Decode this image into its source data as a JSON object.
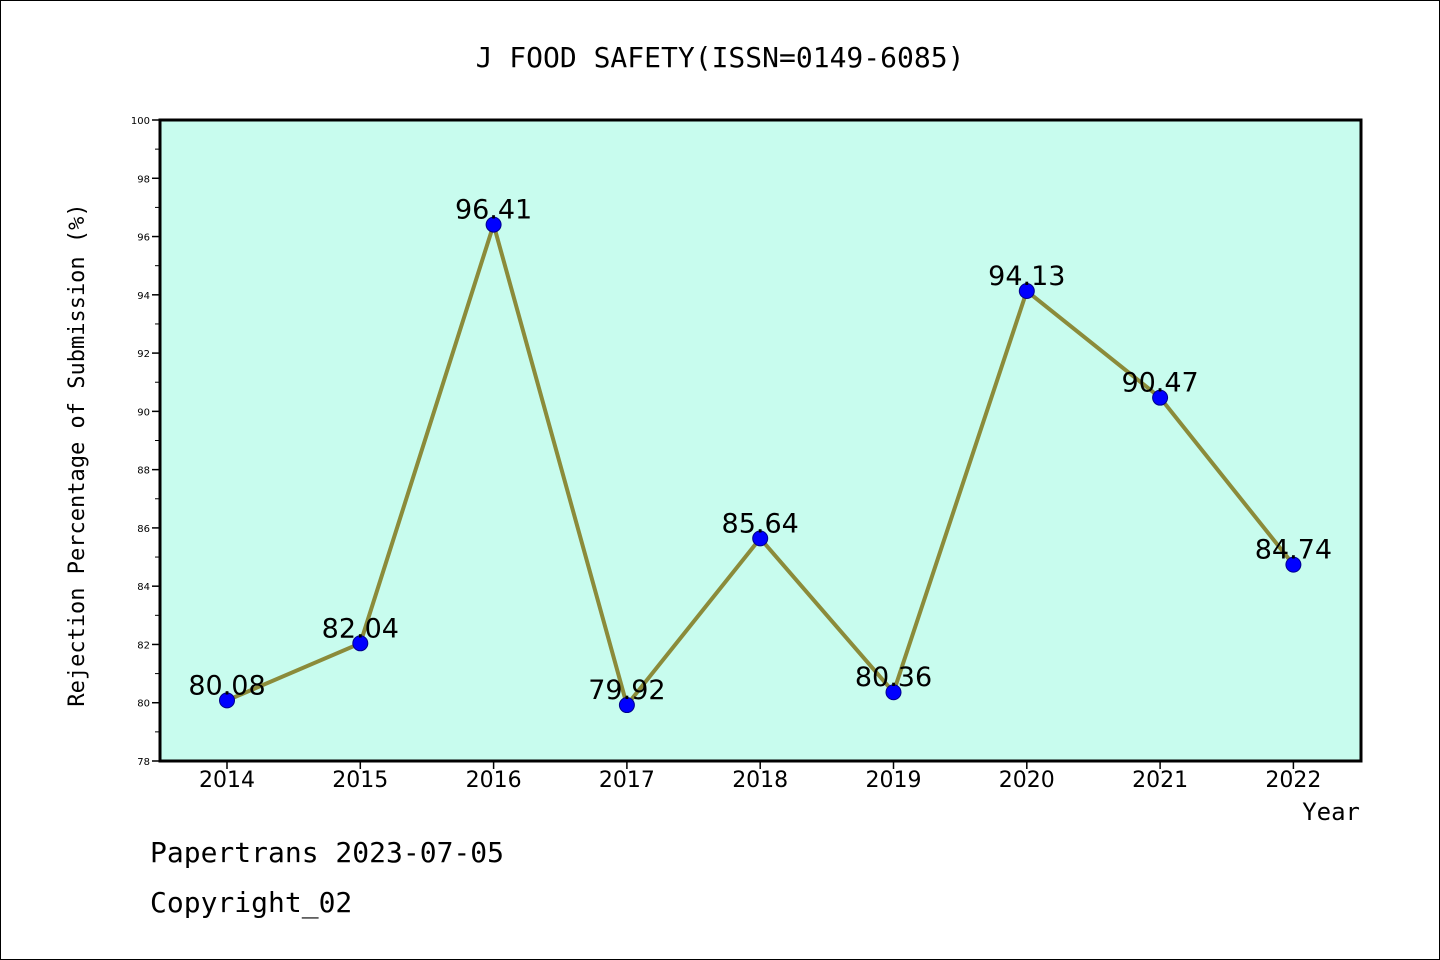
{
  "chart_data": {
    "type": "line",
    "title": "J FOOD SAFETY(ISSN=0149-6085)",
    "xlabel": "Year",
    "ylabel": "Rejection Percentage of Submission (%)",
    "categories": [
      "2014",
      "2015",
      "2016",
      "2017",
      "2018",
      "2019",
      "2020",
      "2021",
      "2022"
    ],
    "values": [
      80.08,
      82.04,
      96.41,
      79.92,
      85.64,
      80.36,
      94.13,
      90.47,
      84.74
    ],
    "data_labels": [
      "80.08",
      "82.04",
      "96.41",
      "79.92",
      "85.64",
      "80.36",
      "94.13",
      "90.47",
      "84.74"
    ],
    "ylim": [
      78,
      100
    ],
    "yticks": [
      "78",
      "80",
      "82",
      "84",
      "86",
      "88",
      "90",
      "92",
      "94",
      "96",
      "98",
      "100"
    ],
    "grid": false,
    "colors": {
      "plot_background": "#c8fcee",
      "line": "#8b8b3a",
      "marker": "#0000ff"
    }
  },
  "footer": {
    "line1": "Papertrans 2023-07-05",
    "line2": "Copyright_02"
  }
}
